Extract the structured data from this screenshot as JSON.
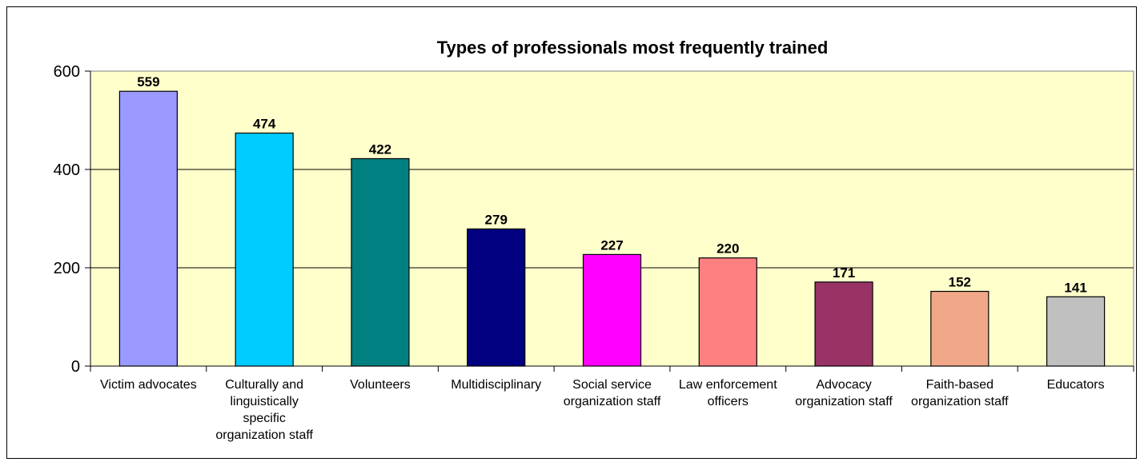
{
  "chart_data": {
    "type": "bar",
    "title": "Types of professionals most frequently trained",
    "xlabel": "",
    "ylabel": "",
    "ylim": [
      0,
      600
    ],
    "yticks": [
      0,
      200,
      400,
      600
    ],
    "grid": "horizontal",
    "legend": "none",
    "plot_background": "#FFFFCC",
    "categories": [
      [
        "Victim advocates"
      ],
      [
        "Culturally and",
        "linguistically",
        "specific",
        "organization staff"
      ],
      [
        "Volunteers"
      ],
      [
        "Multidisciplinary"
      ],
      [
        "Social service",
        "organization staff"
      ],
      [
        "Law enforcement",
        "officers"
      ],
      [
        "Advocacy",
        "organization staff"
      ],
      [
        "Faith-based",
        "organization staff"
      ],
      [
        "Educators"
      ]
    ],
    "values": [
      559,
      474,
      422,
      279,
      227,
      220,
      171,
      152,
      141
    ],
    "colors": [
      "#9999FF",
      "#00CCFF",
      "#008080",
      "#000080",
      "#FF00FF",
      "#FF8080",
      "#993366",
      "#F0A888",
      "#C0C0C0"
    ]
  }
}
